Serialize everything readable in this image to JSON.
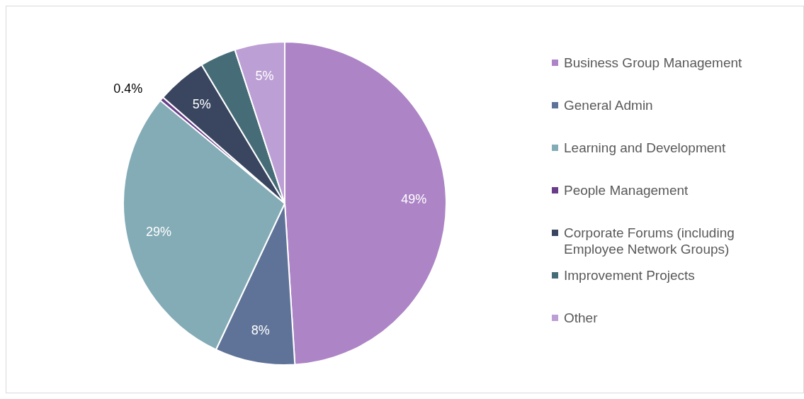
{
  "chart_data": {
    "type": "pie",
    "categories": [
      "Business Group Management",
      "General Admin",
      "Learning and Development",
      "People Management",
      "Corporate Forums (including Employee Network Groups)",
      "Improvement Projects",
      "Other"
    ],
    "values": [
      49,
      8,
      29,
      0.4,
      5,
      3.6,
      5
    ],
    "colors": [
      "#ad84c6",
      "#5f7398",
      "#84acb6",
      "#6a3d8a",
      "#3a4660",
      "#466d77",
      "#bc9fd4"
    ],
    "value_labels": [
      "49%",
      "8%",
      "29%",
      "0.4%",
      "5%",
      null,
      "5%"
    ],
    "legend": "right"
  }
}
